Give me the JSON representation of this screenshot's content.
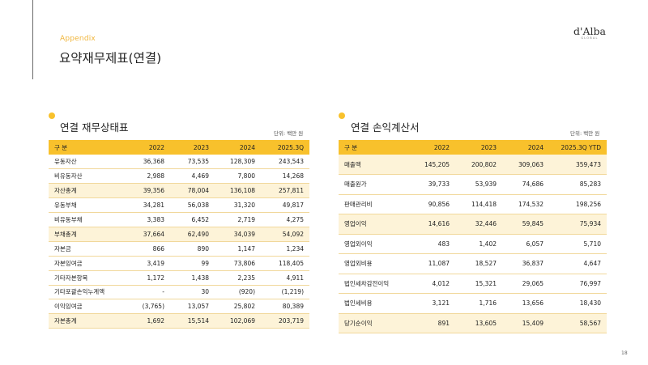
{
  "header": {
    "section_label": "Appendix",
    "page_title": "요약재무제표(연결)",
    "logo_main": "d'Alba",
    "logo_sub": "GLOBAL"
  },
  "balance_sheet": {
    "title": "연결 재무상태표",
    "unit": "단위: 백만 원",
    "columns": [
      "구 분",
      "2022",
      "2023",
      "2024",
      "2025.3Q"
    ],
    "rows": [
      {
        "label": "유동자산",
        "values": [
          "36,368",
          "73,535",
          "128,309",
          "243,543"
        ],
        "highlight": false
      },
      {
        "label": "비유동자산",
        "values": [
          "2,988",
          "4,469",
          "7,800",
          "14,268"
        ],
        "highlight": false
      },
      {
        "label": "자산총계",
        "values": [
          "39,356",
          "78,004",
          "136,108",
          "257,811"
        ],
        "highlight": true
      },
      {
        "label": "유동부채",
        "values": [
          "34,281",
          "56,038",
          "31,320",
          "49,817"
        ],
        "highlight": false
      },
      {
        "label": "비유동부채",
        "values": [
          "3,383",
          "6,452",
          "2,719",
          "4,275"
        ],
        "highlight": false
      },
      {
        "label": "부채총계",
        "values": [
          "37,664",
          "62,490",
          "34,039",
          "54,092"
        ],
        "highlight": true
      },
      {
        "label": "자본금",
        "values": [
          "866",
          "890",
          "1,147",
          "1,234"
        ],
        "highlight": false
      },
      {
        "label": "자본잉여금",
        "values": [
          "3,419",
          "99",
          "73,806",
          "118,405"
        ],
        "highlight": false
      },
      {
        "label": "기타자본항목",
        "values": [
          "1,172",
          "1,438",
          "2,235",
          "4,911"
        ],
        "highlight": false
      },
      {
        "label": "기타포괄손익누계액",
        "values": [
          "-",
          "30",
          "(920)",
          "(1,219)"
        ],
        "highlight": false
      },
      {
        "label": "이익잉여금",
        "values": [
          "(3,765)",
          "13,057",
          "25,802",
          "80,389"
        ],
        "highlight": false
      },
      {
        "label": "자본총계",
        "values": [
          "1,692",
          "15,514",
          "102,069",
          "203,719"
        ],
        "highlight": true
      }
    ]
  },
  "income_statement": {
    "title": "연결 손익계산서",
    "unit": "단위: 백만 원",
    "columns": [
      "구 분",
      "2022",
      "2023",
      "2024",
      "2025.3Q YTD"
    ],
    "rows": [
      {
        "label": "매출액",
        "values": [
          "145,205",
          "200,802",
          "309,063",
          "359,473"
        ],
        "highlight": true
      },
      {
        "label": "매출원가",
        "values": [
          "39,733",
          "53,939",
          "74,686",
          "85,283"
        ],
        "highlight": false
      },
      {
        "label": "판매관리비",
        "values": [
          "90,856",
          "114,418",
          "174,532",
          "198,256"
        ],
        "highlight": false
      },
      {
        "label": "영업이익",
        "values": [
          "14,616",
          "32,446",
          "59,845",
          "75,934"
        ],
        "highlight": true
      },
      {
        "label": "영업외이익",
        "values": [
          "483",
          "1,402",
          "6,057",
          "5,710"
        ],
        "highlight": false
      },
      {
        "label": "영업외비용",
        "values": [
          "11,087",
          "18,527",
          "36,837",
          "4,647"
        ],
        "highlight": false
      },
      {
        "label": "법인세차감전이익",
        "values": [
          "4,012",
          "15,321",
          "29,065",
          "76,997"
        ],
        "highlight": false
      },
      {
        "label": "법인세비용",
        "values": [
          "3,121",
          "1,716",
          "13,656",
          "18,430"
        ],
        "highlight": false
      },
      {
        "label": "당기순이익",
        "values": [
          "891",
          "13,605",
          "15,409",
          "58,567"
        ],
        "highlight": true
      }
    ]
  },
  "footer": {
    "page_number": "18"
  },
  "colors": {
    "accent": "#f8c12c",
    "highlight_row": "#fdf3d8",
    "appendix_text": "#f0b53a"
  }
}
